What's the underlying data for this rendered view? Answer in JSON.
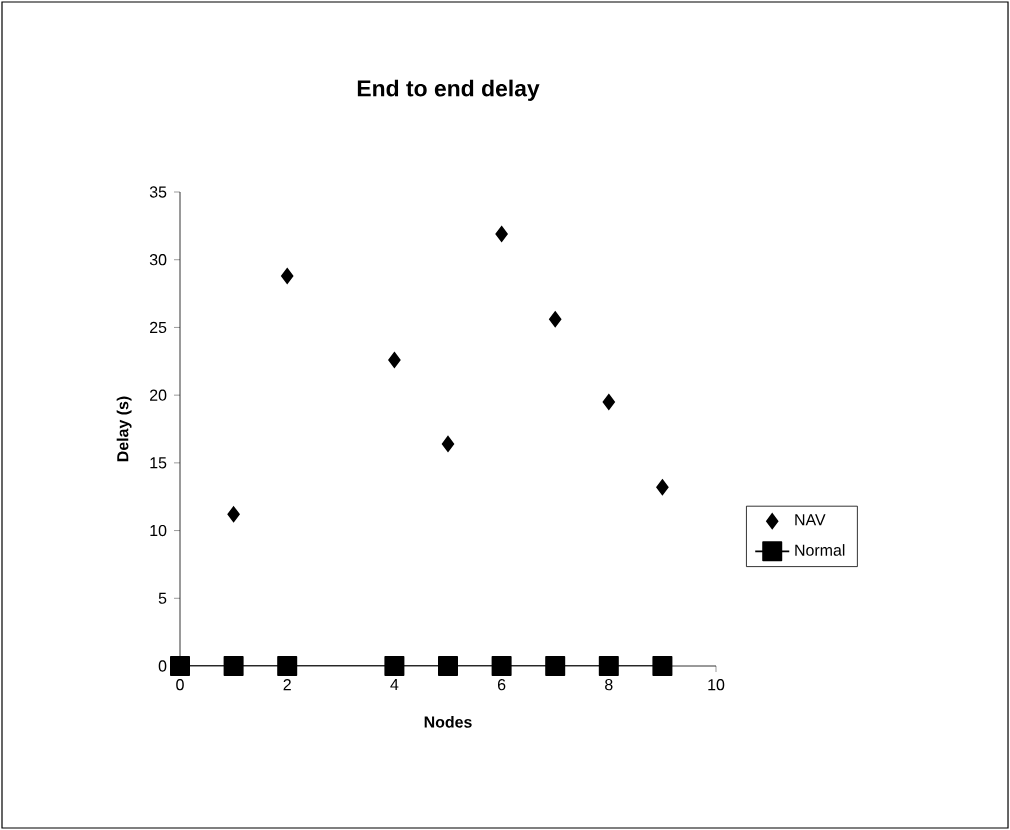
{
  "chart_data": {
    "type": "scatter",
    "title": "End to end delay",
    "xlabel": "Nodes",
    "ylabel": "Delay (s)",
    "xlim": [
      0,
      10
    ],
    "xticks": [
      0,
      2,
      4,
      6,
      8,
      10
    ],
    "ylim": [
      0,
      35
    ],
    "yticks": [
      0,
      5,
      10,
      15,
      20,
      25,
      30,
      35
    ],
    "legend": "right",
    "grid": false,
    "series": [
      {
        "name": "NAV",
        "marker": "diamond",
        "color": "#000000",
        "x": [
          1,
          2,
          4,
          5,
          6,
          7,
          8,
          9
        ],
        "values": [
          11.2,
          28.8,
          22.6,
          16.4,
          31.9,
          25.6,
          19.5,
          13.2
        ]
      },
      {
        "name": "Normal",
        "type": "line",
        "marker": "square",
        "color": "#000000",
        "x": [
          0,
          1,
          2,
          4,
          5,
          6,
          7,
          8,
          9
        ],
        "values": [
          0,
          0,
          0,
          0,
          0,
          0,
          0,
          0,
          0
        ]
      }
    ]
  }
}
